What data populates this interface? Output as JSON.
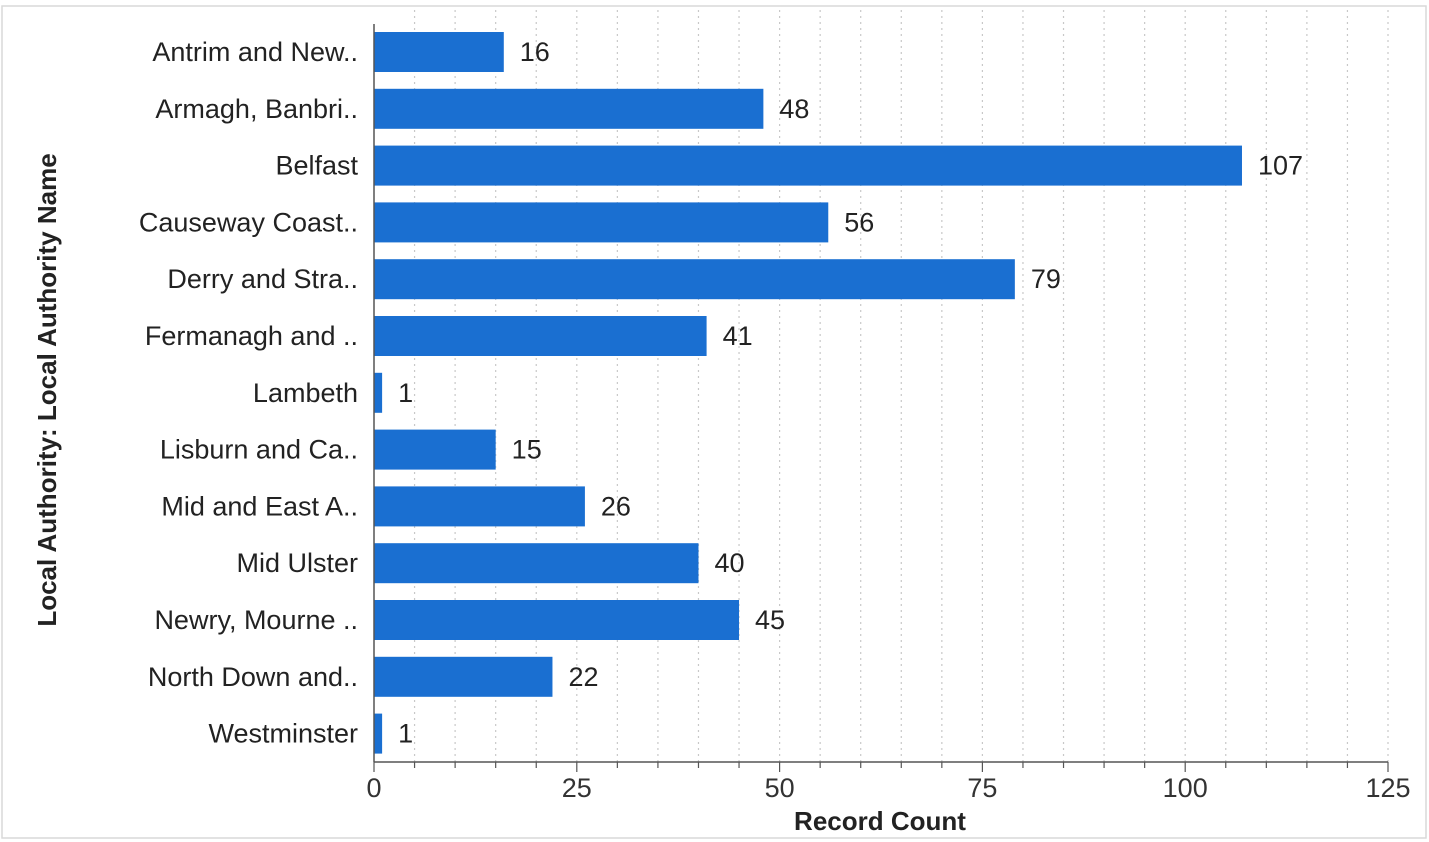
{
  "chart_data": {
    "type": "bar",
    "orientation": "horizontal",
    "categories": [
      "Antrim and New..",
      "Armagh, Banbri..",
      "Belfast",
      "Causeway Coast..",
      "Derry and Stra..",
      "Fermanagh and ..",
      "Lambeth",
      "Lisburn and Ca..",
      "Mid and East A..",
      "Mid Ulster",
      "Newry, Mourne ..",
      "North Down and..",
      "Westminster"
    ],
    "values": [
      16,
      48,
      107,
      56,
      79,
      41,
      1,
      15,
      26,
      40,
      45,
      22,
      1
    ],
    "data_labels": [
      "16",
      "48",
      "107",
      "56",
      "79",
      "41",
      "1",
      "15",
      "26",
      "40",
      "45",
      "22",
      "1"
    ],
    "xlabel": "Record Count",
    "ylabel": "Local Authority: Local Authority Name",
    "xlim": [
      0,
      125
    ],
    "x_ticks": [
      0,
      25,
      50,
      75,
      100,
      125
    ],
    "x_tick_labels": [
      "0",
      "25",
      "50",
      "75",
      "100",
      "125"
    ],
    "grid": "vertical dotted",
    "legend": "none",
    "colors": {
      "bar": "#1a6fd1",
      "grid": "#c8c8c8",
      "axis": "#555555",
      "frame": "#d9d9d9"
    }
  }
}
